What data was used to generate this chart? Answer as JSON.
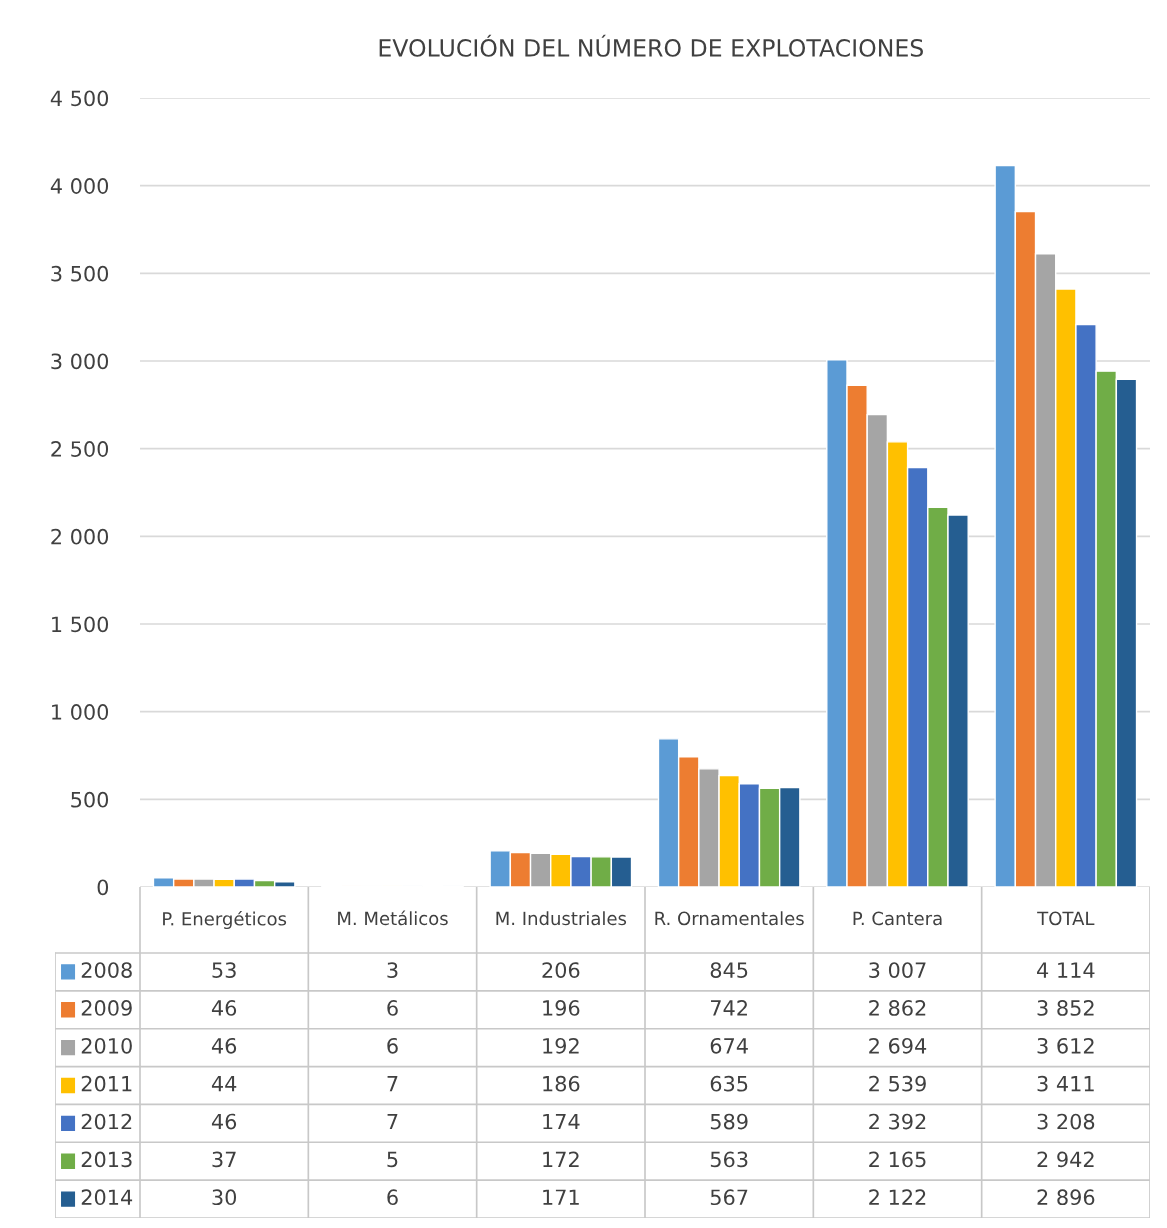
{
  "chart_data": {
    "type": "bar",
    "title": "EVOLUCIÓN DEL NÚMERO DE EXPLOTACIONES",
    "categories": [
      "P. Energéticos",
      "M. Metálicos",
      "M. Industriales",
      "R. Ornamentales",
      "P. Cantera",
      "TOTAL"
    ],
    "series": [
      {
        "name": "2008",
        "color": "#5b9bd5",
        "values": [
          53,
          3,
          206,
          845,
          3007,
          4114
        ],
        "value_labels": [
          "53",
          "3",
          "206",
          "845",
          "3 007",
          "4 114"
        ]
      },
      {
        "name": "2009",
        "color": "#ed7d31",
        "values": [
          46,
          6,
          196,
          742,
          2862,
          3852
        ],
        "value_labels": [
          "46",
          "6",
          "196",
          "742",
          "2 862",
          "3 852"
        ]
      },
      {
        "name": "2010",
        "color": "#a5a5a5",
        "values": [
          46,
          6,
          192,
          674,
          2694,
          3612
        ],
        "value_labels": [
          "46",
          "6",
          "192",
          "674",
          "2 694",
          "3 612"
        ]
      },
      {
        "name": "2011",
        "color": "#ffc000",
        "values": [
          44,
          7,
          186,
          635,
          2539,
          3411
        ],
        "value_labels": [
          "44",
          "7",
          "186",
          "635",
          "2 539",
          "3 411"
        ]
      },
      {
        "name": "2012",
        "color": "#4472c4",
        "values": [
          46,
          7,
          174,
          589,
          2392,
          3208
        ],
        "value_labels": [
          "46",
          "7",
          "174",
          "589",
          "2 392",
          "3 208"
        ]
      },
      {
        "name": "2013",
        "color": "#70ad47",
        "values": [
          37,
          5,
          172,
          563,
          2165,
          2942
        ],
        "value_labels": [
          "37",
          "5",
          "172",
          "563",
          "2 165",
          "2 942"
        ]
      },
      {
        "name": "2014",
        "color": "#255e91",
        "values": [
          30,
          6,
          171,
          567,
          2122,
          2896
        ],
        "value_labels": [
          "30",
          "6",
          "171",
          "567",
          "2 122",
          "2 896"
        ]
      }
    ],
    "ylim": [
      0,
      4500
    ],
    "yticks": [
      {
        "value": 0,
        "label": "0"
      },
      {
        "value": 500,
        "label": "500"
      },
      {
        "value": 1000,
        "label": "1 000"
      },
      {
        "value": 1500,
        "label": "1 500"
      },
      {
        "value": 2000,
        "label": "2 000"
      },
      {
        "value": 2500,
        "label": "2 500"
      },
      {
        "value": 3000,
        "label": "3 000"
      },
      {
        "value": 3500,
        "label": "3 500"
      },
      {
        "value": 4000,
        "label": "4 000"
      },
      {
        "value": 4500,
        "label": "4 500"
      }
    ],
    "grid": "y",
    "legend": "left"
  }
}
